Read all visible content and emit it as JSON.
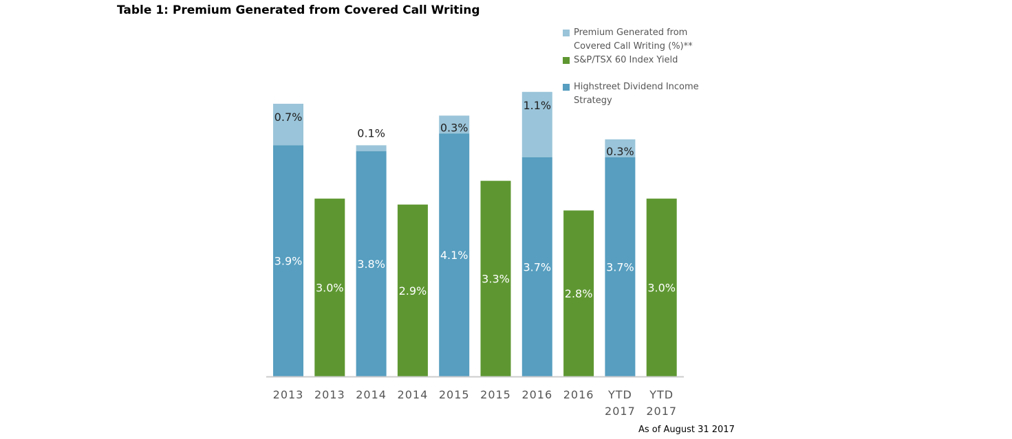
{
  "title": "Table 1: Premium Generated from Covered Call Writing",
  "note": "As of August 31 2017",
  "colors": {
    "premium": "#9ac4d9",
    "index": "#5e9731",
    "strategy": "#579ec0",
    "axis": "#cccccc",
    "tick": "#555555",
    "premium_label": "#222222",
    "bar_label": "#ffffff"
  },
  "chart_data": {
    "type": "bar",
    "stacked": true,
    "title": "Table 1: Premium Generated from Covered Call Writing",
    "xlabel": "",
    "ylabel": "",
    "ylim": [
      0,
      4.8
    ],
    "grid": false,
    "legend_position": "top-right",
    "categories": [
      "2013",
      "2013",
      "2014",
      "2014",
      "2015",
      "2015",
      "2016",
      "2016",
      "YTD 2017",
      "YTD 2017"
    ],
    "tick_labels": [
      [
        "2013"
      ],
      [
        "2013"
      ],
      [
        "2014"
      ],
      [
        "2014"
      ],
      [
        "2015"
      ],
      [
        "2015"
      ],
      [
        "2016"
      ],
      [
        "2016"
      ],
      [
        "YTD",
        "2017"
      ],
      [
        "YTD",
        "2017"
      ]
    ],
    "legend": [
      {
        "key": "premium",
        "lines": [
          "Premium Generated from",
          "Covered Call Writing (%)**"
        ]
      },
      {
        "key": "index",
        "lines": [
          "S&P/TSX 60 Index Yield"
        ]
      },
      {
        "key": "strategy",
        "lines": [
          "Highstreet Dividend Income",
          "Strategy"
        ]
      }
    ],
    "bars": [
      {
        "category": "2013",
        "series": "strategy",
        "value": 3.9,
        "label": "3.9%",
        "premium": 0.7,
        "premium_label": "0.7%"
      },
      {
        "category": "2013",
        "series": "index",
        "value": 3.0,
        "label": "3.0%"
      },
      {
        "category": "2014",
        "series": "strategy",
        "value": 3.8,
        "label": "3.8%",
        "premium": 0.1,
        "premium_label": "0.1%"
      },
      {
        "category": "2014",
        "series": "index",
        "value": 2.9,
        "label": "2.9%"
      },
      {
        "category": "2015",
        "series": "strategy",
        "value": 4.1,
        "label": "4.1%",
        "premium": 0.3,
        "premium_label": "0.3%"
      },
      {
        "category": "2015",
        "series": "index",
        "value": 3.3,
        "label": "3.3%"
      },
      {
        "category": "2016",
        "series": "strategy",
        "value": 3.7,
        "label": "3.7%",
        "premium": 1.1,
        "premium_label": "1.1%"
      },
      {
        "category": "2016",
        "series": "index",
        "value": 2.8,
        "label": "2.8%"
      },
      {
        "category": "YTD 2017",
        "series": "strategy",
        "value": 3.7,
        "label": "3.7%",
        "premium": 0.3,
        "premium_label": "0.3%"
      },
      {
        "category": "YTD 2017",
        "series": "index",
        "value": 3.0,
        "label": "3.0%"
      }
    ]
  }
}
